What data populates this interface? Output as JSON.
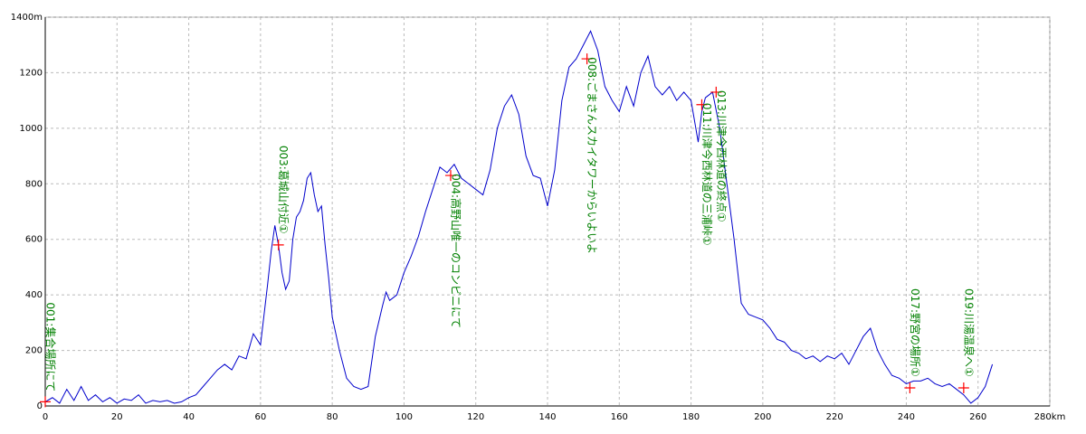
{
  "chart_data": {
    "type": "line",
    "x": [
      0,
      2,
      4,
      6,
      8,
      10,
      12,
      14,
      16,
      18,
      20,
      22,
      24,
      26,
      28,
      30,
      32,
      34,
      36,
      38,
      40,
      42,
      44,
      46,
      48,
      50,
      52,
      54,
      56,
      58,
      60,
      61,
      62,
      63,
      64,
      65,
      66,
      67,
      68,
      69,
      70,
      71,
      72,
      73,
      74,
      75,
      76,
      77,
      78,
      79,
      80,
      82,
      84,
      86,
      88,
      90,
      92,
      94,
      95,
      96,
      98,
      100,
      102,
      104,
      106,
      108,
      110,
      112,
      114,
      116,
      118,
      120,
      122,
      124,
      126,
      128,
      130,
      132,
      134,
      136,
      138,
      140,
      142,
      144,
      146,
      148,
      150,
      152,
      154,
      156,
      158,
      160,
      162,
      164,
      166,
      168,
      170,
      172,
      174,
      176,
      178,
      180,
      182,
      183,
      184,
      186,
      188,
      190,
      192,
      194,
      196,
      198,
      200,
      202,
      204,
      206,
      208,
      210,
      212,
      214,
      216,
      218,
      220,
      222,
      224,
      226,
      228,
      230,
      232,
      234,
      236,
      238,
      240,
      242,
      244,
      246,
      248,
      250,
      252,
      254,
      256,
      258,
      260,
      262,
      264
    ],
    "series": [
      {
        "color": "#0000cc",
        "values": [
          15,
          30,
          10,
          60,
          20,
          70,
          20,
          40,
          15,
          30,
          10,
          25,
          20,
          40,
          10,
          20,
          15,
          20,
          10,
          15,
          30,
          40,
          70,
          100,
          130,
          150,
          130,
          180,
          170,
          260,
          220,
          330,
          440,
          560,
          650,
          580,
          480,
          420,
          450,
          600,
          680,
          700,
          740,
          820,
          840,
          760,
          700,
          720,
          580,
          460,
          320,
          200,
          100,
          70,
          60,
          70,
          250,
          360,
          410,
          380,
          400,
          480,
          540,
          610,
          700,
          780,
          860,
          840,
          870,
          820,
          800,
          780,
          760,
          850,
          1000,
          1080,
          1120,
          1050,
          900,
          830,
          820,
          720,
          850,
          1100,
          1220,
          1250,
          1300,
          1350,
          1280,
          1150,
          1100,
          1060,
          1150,
          1080,
          1200,
          1260,
          1150,
          1120,
          1150,
          1100,
          1130,
          1100,
          950,
          1060,
          1110,
          1130,
          1000,
          800,
          600,
          370,
          330,
          320,
          310,
          280,
          240,
          230,
          200,
          190,
          170,
          180,
          160,
          180,
          170,
          190,
          150,
          200,
          250,
          280,
          200,
          150,
          110,
          100,
          80,
          90,
          90,
          100,
          80,
          70,
          80,
          60,
          40,
          10,
          30,
          70,
          150
        ]
      }
    ],
    "xlim": [
      0,
      280
    ],
    "xticks": [
      0,
      20,
      40,
      60,
      80,
      100,
      120,
      140,
      160,
      180,
      200,
      220,
      240,
      260,
      {
        "value": 280,
        "label": "280km"
      }
    ],
    "ylim": [
      0,
      1400
    ],
    "yticks": [
      0,
      200,
      400,
      600,
      800,
      1000,
      1200,
      {
        "value": 1400,
        "label": "1400m"
      }
    ],
    "grid": true,
    "annotations": [
      {
        "x": 0,
        "y": 15,
        "label": "001:集合場所にて"
      },
      {
        "x": 65,
        "y": 580,
        "label": "003:葛城山付近①"
      },
      {
        "x": 113,
        "y": 830,
        "label": "004:高野山唯一のコンビニにて"
      },
      {
        "x": 151,
        "y": 1250,
        "label": "008:ごまさんスカイタワーからいよいよ"
      },
      {
        "x": 183,
        "y": 1085,
        "label": "011:川津今西林道の三浦峠①"
      },
      {
        "x": 187,
        "y": 1130,
        "label": "013:川津今西林道の終点①"
      },
      {
        "x": 241,
        "y": 65,
        "label": "017:野宮の場所①"
      },
      {
        "x": 256,
        "y": 65,
        "label": "019:川湯温泉へ①"
      }
    ],
    "annotation_color": "#008000",
    "marker_color": "#ff0000"
  }
}
